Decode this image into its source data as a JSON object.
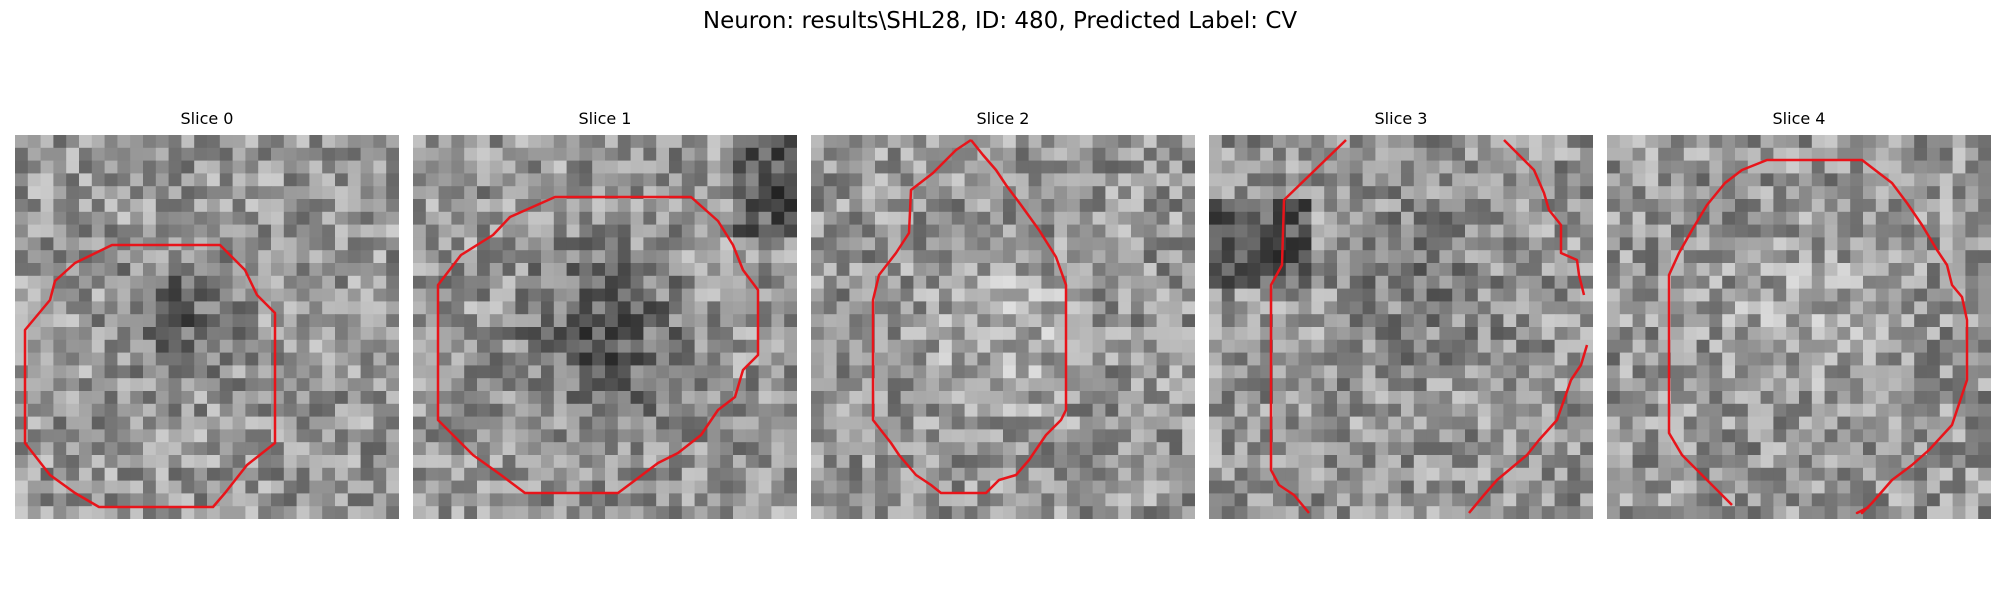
{
  "figure": {
    "title": "Neuron: results\\SHL28, ID: 480, Predicted Label: CV"
  },
  "panels": [
    {
      "title": "Slice 0"
    },
    {
      "title": "Slice 1"
    },
    {
      "title": "Slice 2"
    },
    {
      "title": "Slice 3"
    },
    {
      "title": "Slice 4"
    }
  ],
  "style": {
    "contour_color": "#e8141a",
    "colormap": "grayscale"
  }
}
